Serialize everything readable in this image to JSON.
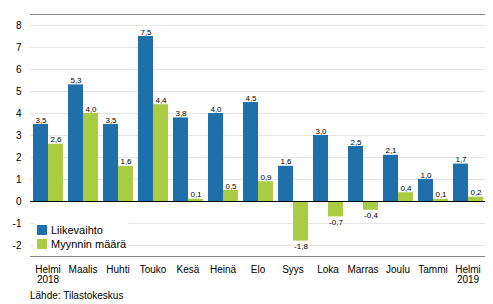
{
  "chart_data": {
    "type": "bar",
    "categories": [
      "Helmi\n2018",
      "Maalis",
      "Huhti",
      "Touko",
      "Kesä",
      "Heinä",
      "Elo",
      "Syys",
      "Loka",
      "Marras",
      "Joulu",
      "Tammi",
      "Helmi\n2019"
    ],
    "series": [
      {
        "name": "Liikevaihto",
        "color": "#1F6FAB",
        "values": [
          3.5,
          5.3,
          3.5,
          7.5,
          3.8,
          4.0,
          4.5,
          1.6,
          3.0,
          2.5,
          2.1,
          1.0,
          1.7
        ],
        "value_labels": [
          "3,5",
          "5,3",
          "3,5",
          "7,5",
          "3,8",
          "4,0",
          "4,5",
          "1,6",
          "3,0",
          "2,5",
          "2,1",
          "1,0",
          "1,7"
        ]
      },
      {
        "name": "Myynnin määrä",
        "color": "#AACC44",
        "values": [
          2.6,
          4.0,
          1.6,
          4.4,
          0.1,
          0.5,
          0.9,
          -1.8,
          -0.7,
          -0.4,
          0.4,
          0.1,
          0.2
        ],
        "value_labels": [
          "2,6",
          "4,0",
          "1,6",
          "4,4",
          "0,1",
          "0,5",
          "0,9",
          "-1,8",
          "-0,7",
          "-0,4",
          "0,4",
          "0,1",
          "0,2"
        ]
      }
    ],
    "ylim": [
      -2.5,
      8.5
    ],
    "yticks": [
      -2,
      -1,
      0,
      1,
      2,
      3,
      4,
      5,
      6,
      7,
      8
    ],
    "grid": true,
    "legend": "lower left",
    "data_labels": true,
    "annotations": [
      "Lähde: Tilastokeskus"
    ]
  }
}
